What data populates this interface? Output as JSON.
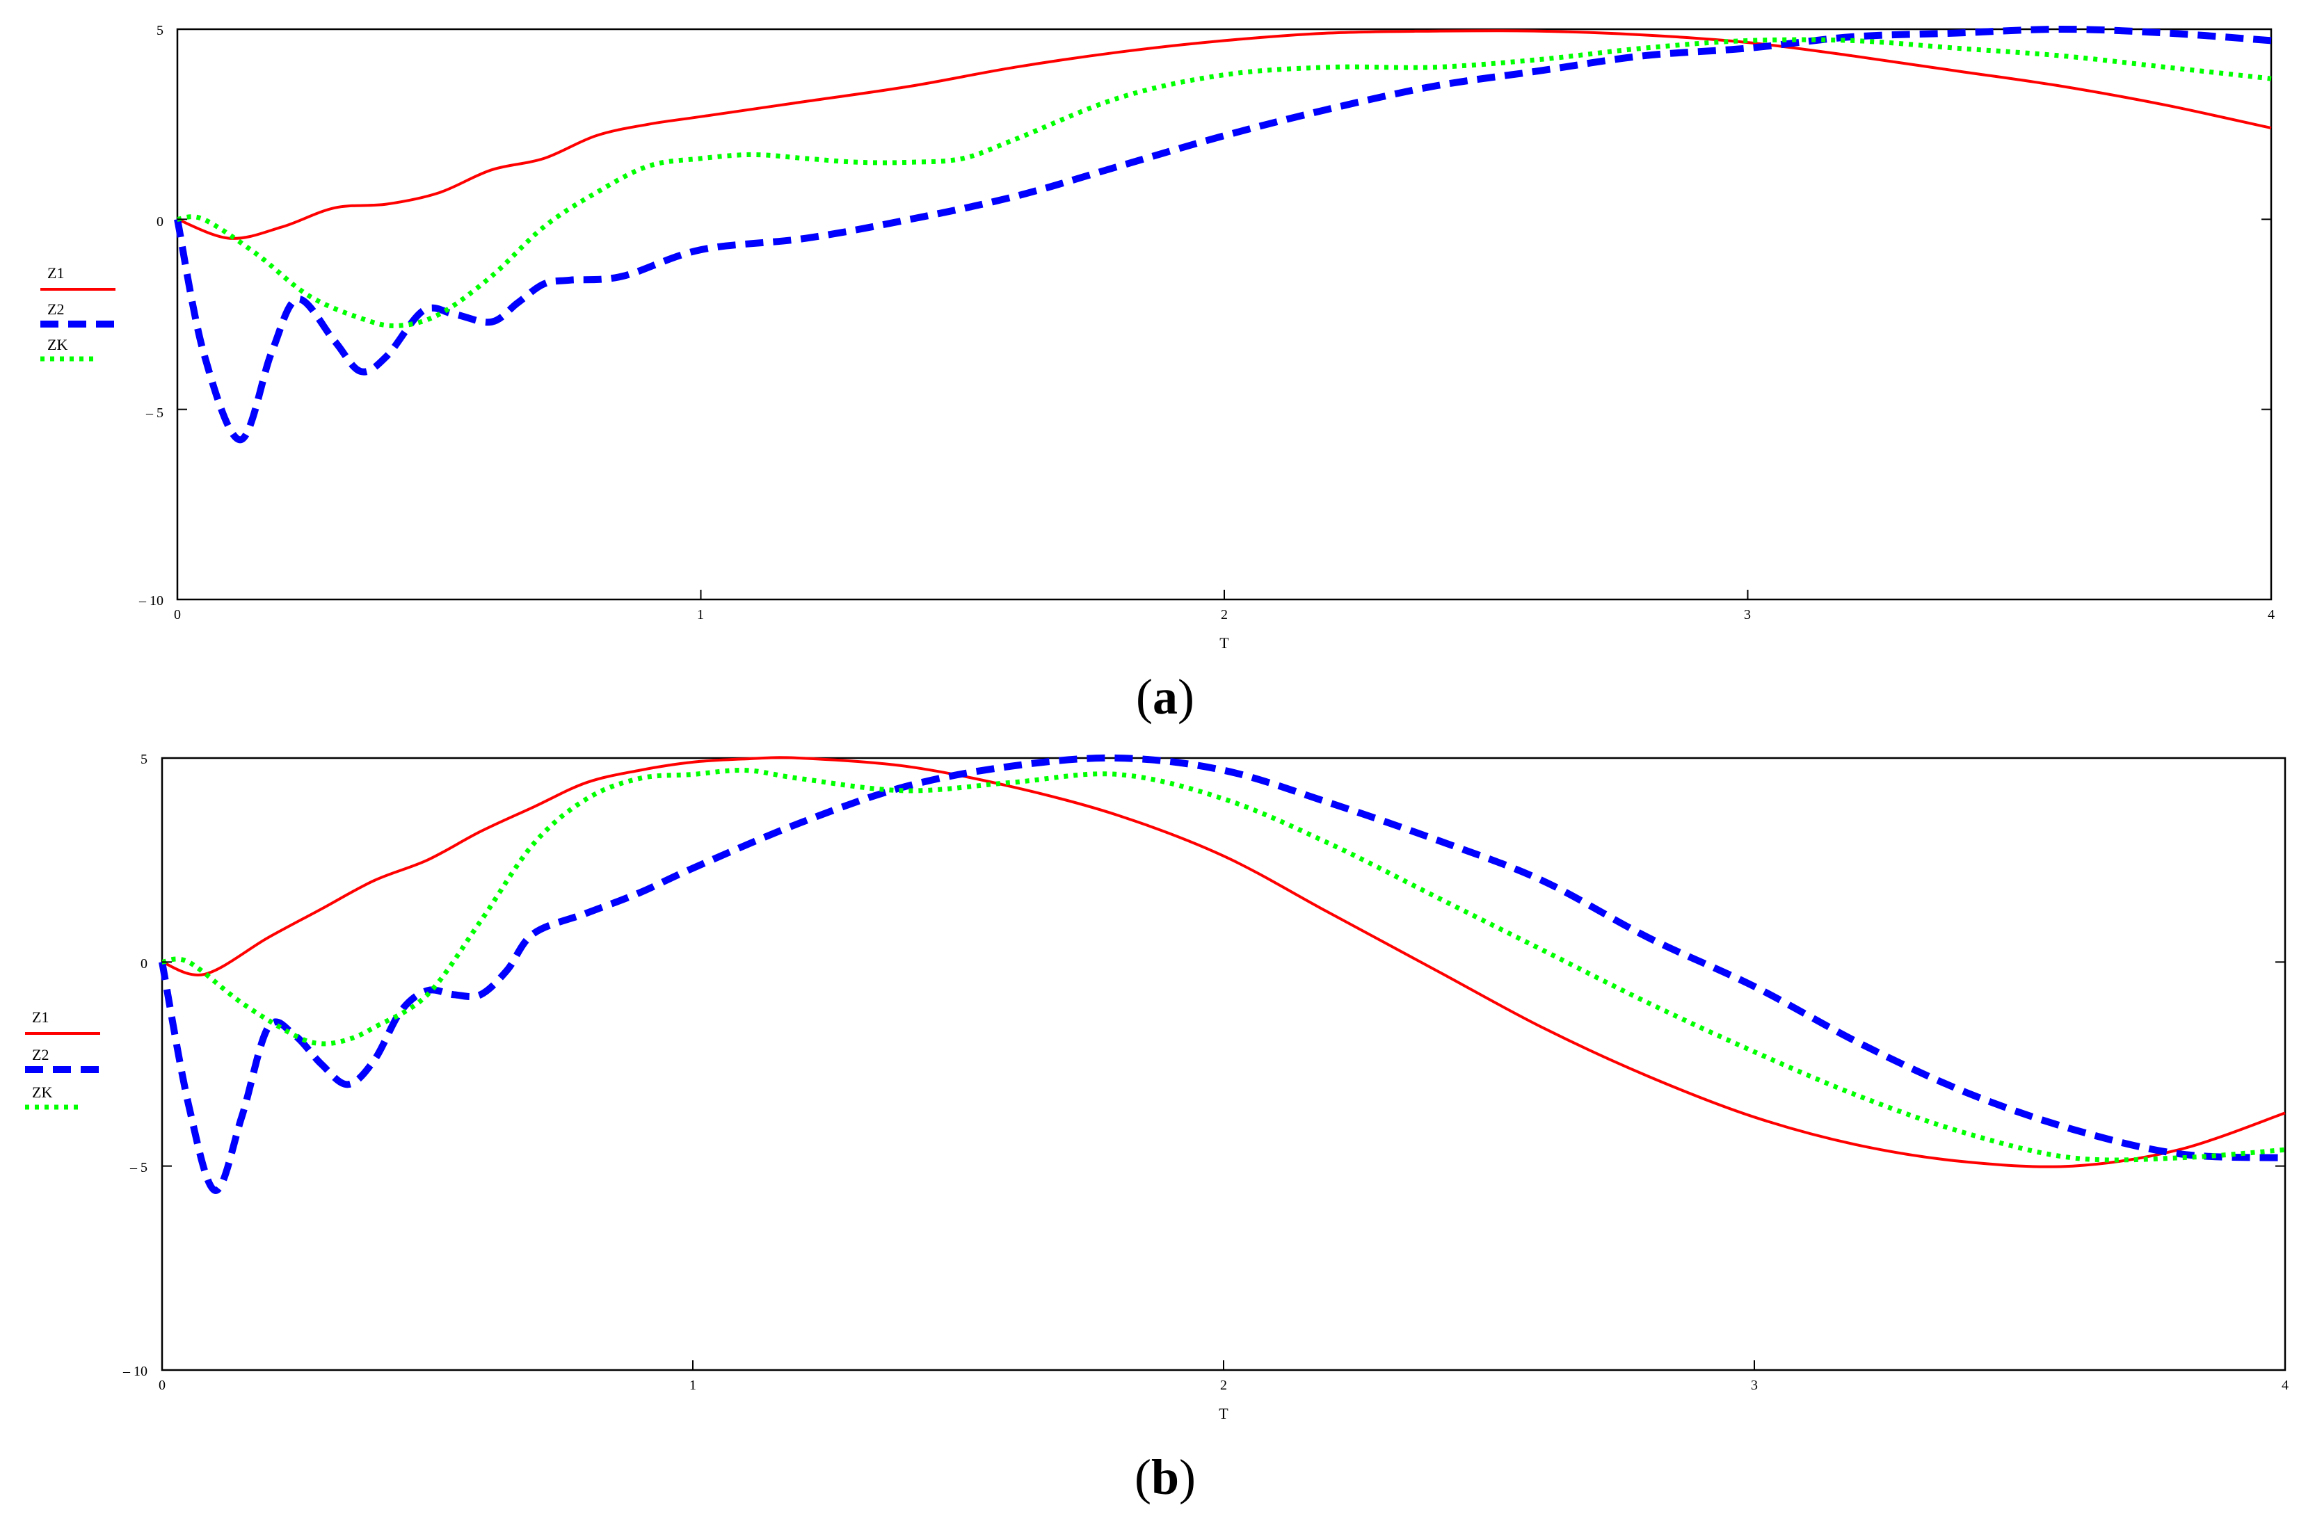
{
  "figure": {
    "captions": [
      {
        "open": "(",
        "letter": "a",
        "close": ")"
      },
      {
        "open": "(",
        "letter": "b",
        "close": ")"
      }
    ]
  },
  "chart_data": [
    {
      "type": "line",
      "panel": "a",
      "xlabel": "T",
      "xlim": [
        0,
        4
      ],
      "ylim": [
        -10,
        5
      ],
      "xticks": [
        0,
        1,
        2,
        3,
        4
      ],
      "xtick_labels": [
        "0",
        "1",
        "2",
        "3",
        "4"
      ],
      "yticks": [
        5,
        0,
        -5,
        -10
      ],
      "ytick_labels": [
        "5",
        "0",
        "–  5",
        "–  10"
      ],
      "grid": false,
      "legend_position": "left",
      "series": [
        {
          "name": "Z1",
          "color": "#ff0000",
          "style": "solid",
          "x": [
            0,
            0.1,
            0.2,
            0.3,
            0.4,
            0.5,
            0.6,
            0.7,
            0.8,
            0.9,
            1.0,
            1.2,
            1.4,
            1.6,
            1.8,
            2.0,
            2.2,
            2.4,
            2.6,
            2.8,
            3.0,
            3.2,
            3.4,
            3.6,
            3.8,
            4.0
          ],
          "y": [
            0,
            -0.5,
            -0.2,
            0.3,
            0.4,
            0.7,
            1.3,
            1.6,
            2.2,
            2.5,
            2.7,
            3.1,
            3.5,
            4.0,
            4.4,
            4.7,
            4.9,
            4.95,
            4.95,
            4.85,
            4.65,
            4.3,
            3.9,
            3.5,
            3.0,
            2.4
          ]
        },
        {
          "name": "Z2",
          "color": "#0000ff",
          "style": "dashed",
          "x": [
            0,
            0.05,
            0.12,
            0.18,
            0.23,
            0.3,
            0.35,
            0.4,
            0.47,
            0.53,
            0.6,
            0.65,
            0.7,
            0.75,
            0.85,
            1.0,
            1.2,
            1.4,
            1.6,
            1.8,
            2.0,
            2.2,
            2.4,
            2.6,
            2.8,
            3.0,
            3.2,
            3.4,
            3.6,
            3.8,
            4.0
          ],
          "y": [
            0,
            -3.5,
            -5.8,
            -3.5,
            -2.1,
            -3.2,
            -4.0,
            -3.6,
            -2.4,
            -2.5,
            -2.7,
            -2.2,
            -1.7,
            -1.6,
            -1.5,
            -0.8,
            -0.5,
            0.0,
            0.6,
            1.4,
            2.2,
            2.9,
            3.5,
            3.9,
            4.3,
            4.5,
            4.8,
            4.9,
            5.0,
            4.9,
            4.7
          ]
        },
        {
          "name": "ZK",
          "color": "#00ff00",
          "style": "dotted",
          "x": [
            0,
            0.05,
            0.15,
            0.25,
            0.35,
            0.42,
            0.5,
            0.6,
            0.7,
            0.8,
            0.9,
            1.0,
            1.1,
            1.2,
            1.3,
            1.4,
            1.5,
            1.6,
            1.8,
            2.0,
            2.2,
            2.4,
            2.6,
            2.8,
            3.0,
            3.2,
            3.4,
            3.6,
            3.8,
            4.0
          ],
          "y": [
            0,
            0,
            -0.9,
            -2.0,
            -2.6,
            -2.8,
            -2.5,
            -1.5,
            -0.2,
            0.7,
            1.4,
            1.6,
            1.7,
            1.6,
            1.5,
            1.5,
            1.6,
            2.1,
            3.2,
            3.8,
            4.0,
            4.0,
            4.2,
            4.5,
            4.7,
            4.7,
            4.5,
            4.3,
            4.0,
            3.7
          ]
        }
      ]
    },
    {
      "type": "line",
      "panel": "b",
      "xlabel": "T",
      "xlim": [
        0,
        4
      ],
      "ylim": [
        -10,
        5
      ],
      "xticks": [
        0,
        1,
        2,
        3,
        4
      ],
      "xtick_labels": [
        "0",
        "1",
        "2",
        "3",
        "4"
      ],
      "yticks": [
        5,
        0,
        -5,
        -10
      ],
      "ytick_labels": [
        "5",
        "0",
        "–  5",
        "–  10"
      ],
      "grid": false,
      "legend_position": "left",
      "series": [
        {
          "name": "Z1",
          "color": "#ff0000",
          "style": "solid",
          "x": [
            0,
            0.08,
            0.2,
            0.3,
            0.4,
            0.5,
            0.6,
            0.7,
            0.8,
            0.9,
            1.0,
            1.1,
            1.2,
            1.4,
            1.6,
            1.8,
            2.0,
            2.2,
            2.4,
            2.6,
            2.8,
            3.0,
            3.2,
            3.4,
            3.6,
            3.8,
            4.0
          ],
          "y": [
            0,
            -0.3,
            0.6,
            1.3,
            2.0,
            2.5,
            3.2,
            3.8,
            4.4,
            4.7,
            4.9,
            4.98,
            5.0,
            4.8,
            4.3,
            3.6,
            2.6,
            1.2,
            -0.2,
            -1.6,
            -2.8,
            -3.8,
            -4.5,
            -4.9,
            -5.0,
            -4.6,
            -3.7
          ]
        },
        {
          "name": "Z2",
          "color": "#0000ff",
          "style": "dashed",
          "x": [
            0,
            0.05,
            0.1,
            0.15,
            0.2,
            0.25,
            0.3,
            0.35,
            0.4,
            0.45,
            0.5,
            0.55,
            0.6,
            0.65,
            0.7,
            0.8,
            0.9,
            1.0,
            1.2,
            1.4,
            1.6,
            1.8,
            2.0,
            2.2,
            2.4,
            2.6,
            2.8,
            3.0,
            3.2,
            3.4,
            3.6,
            3.8,
            4.0
          ],
          "y": [
            0,
            -3.5,
            -5.6,
            -3.8,
            -1.6,
            -1.8,
            -2.5,
            -3.0,
            -2.4,
            -1.2,
            -0.7,
            -0.8,
            -0.8,
            -0.2,
            0.7,
            1.2,
            1.7,
            2.3,
            3.4,
            4.3,
            4.8,
            5.0,
            4.7,
            3.9,
            3.0,
            2.0,
            0.6,
            -0.6,
            -2.0,
            -3.2,
            -4.1,
            -4.7,
            -4.8
          ]
        },
        {
          "name": "ZK",
          "color": "#00ff00",
          "style": "dotted",
          "x": [
            0,
            0.05,
            0.15,
            0.25,
            0.3,
            0.35,
            0.4,
            0.5,
            0.6,
            0.7,
            0.8,
            0.9,
            1.0,
            1.1,
            1.2,
            1.4,
            1.6,
            1.8,
            2.0,
            2.2,
            2.4,
            2.6,
            2.8,
            3.0,
            3.2,
            3.4,
            3.6,
            3.8,
            4.0
          ],
          "y": [
            0,
            0,
            -1.0,
            -1.8,
            -2.0,
            -1.9,
            -1.6,
            -0.8,
            1.0,
            2.9,
            4.0,
            4.5,
            4.6,
            4.7,
            4.5,
            4.2,
            4.4,
            4.6,
            4.0,
            2.9,
            1.6,
            0.3,
            -1.0,
            -2.2,
            -3.3,
            -4.2,
            -4.8,
            -4.8,
            -4.6
          ]
        }
      ]
    }
  ]
}
